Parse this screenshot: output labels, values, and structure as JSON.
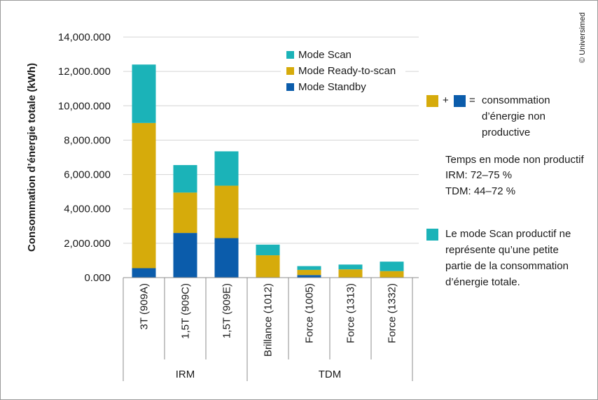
{
  "colors": {
    "scan": "#1bb3b8",
    "ready": "#d6ab0b",
    "standby": "#0b5cab",
    "grid": "#d4d4d4",
    "axis": "#8c8c8c"
  },
  "chart_data": {
    "type": "bar",
    "stacked": true,
    "ylabel": "Consommation d’énergie totale (kWh)",
    "xlabel": "",
    "ylim": [
      0,
      14000000
    ],
    "yticks": [
      {
        "value": 0,
        "label": "0.000"
      },
      {
        "value": 2000000,
        "label": "2,000.000"
      },
      {
        "value": 4000000,
        "label": "4,000.000"
      },
      {
        "value": 6000000,
        "label": "6,000.000"
      },
      {
        "value": 8000000,
        "label": "8,000.000"
      },
      {
        "value": 10000000,
        "label": "10,000.000"
      },
      {
        "value": 12000000,
        "label": "12,000.000"
      },
      {
        "value": 14000000,
        "label": "14,000.000"
      }
    ],
    "grid": true,
    "legend_position": "top-right",
    "categories": [
      "3T (909A)",
      "1,5T (909C)",
      "1,5T (909E)",
      "Brillance (1012)",
      "Force (1005)",
      "Force (1313)",
      "Force (1332)"
    ],
    "groups": [
      {
        "label": "IRM",
        "count": 3
      },
      {
        "label": "TDM",
        "count": 4
      }
    ],
    "series": [
      {
        "name": "Mode Standby",
        "color_key": "standby",
        "values": [
          550000,
          2600000,
          2300000,
          0,
          150000,
          0,
          0
        ]
      },
      {
        "name": "Mode Ready-to-scan",
        "color_key": "ready",
        "values": [
          8450000,
          2350000,
          3050000,
          1300000,
          300000,
          480000,
          380000
        ]
      },
      {
        "name": "Mode Scan",
        "color_key": "scan",
        "values": [
          3400000,
          1600000,
          2000000,
          620000,
          220000,
          280000,
          550000
        ]
      }
    ],
    "legend_order": [
      "Mode Scan",
      "Mode Ready-to-scan",
      "Mode Standby"
    ]
  },
  "notes": {
    "plus_sign": "+",
    "equals_sign": "=",
    "non_productive_lines": [
      "consommation",
      "d’énergie non",
      "productive"
    ],
    "time_lines": [
      "Temps en mode non productif",
      "IRM: 72–75 %",
      "TDM: 44–72 %"
    ],
    "scan_lines": [
      "Le mode Scan productif ne",
      "représente qu’une petite",
      "partie de la consommation",
      "d’énergie totale."
    ]
  },
  "copyright": "© Universimed"
}
